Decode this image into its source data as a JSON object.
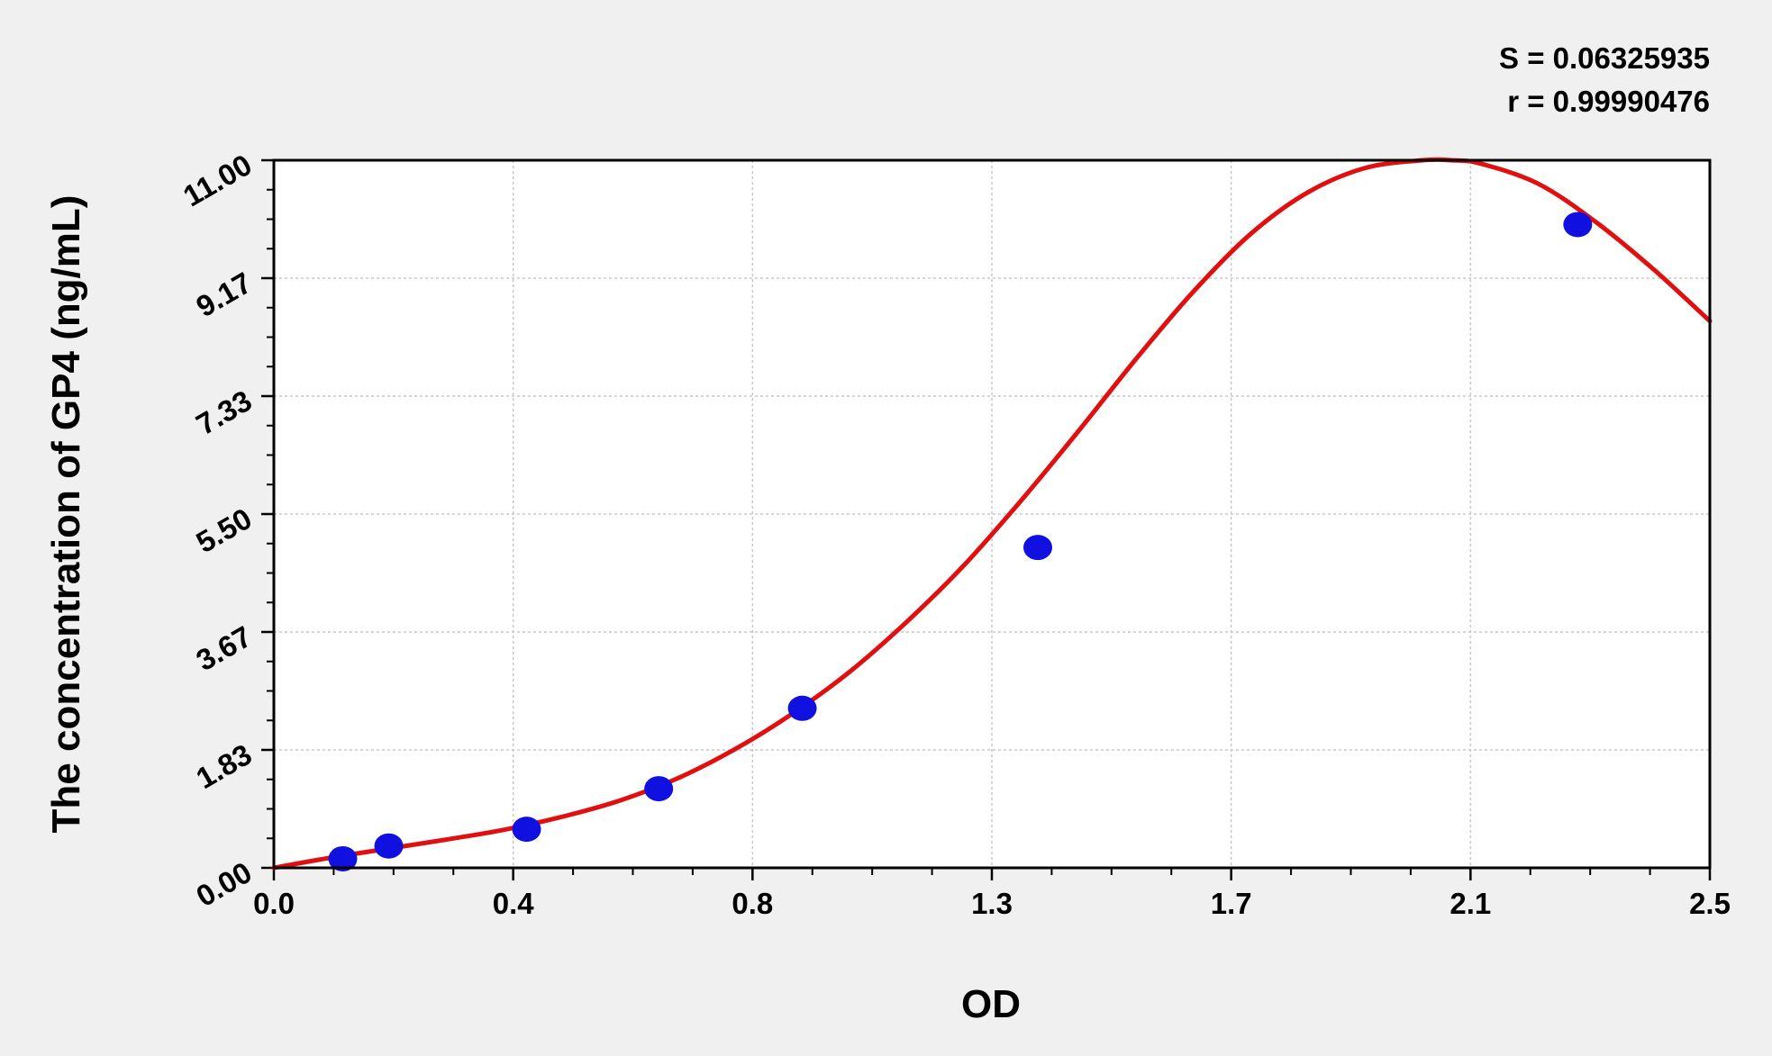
{
  "chart_data": {
    "type": "scatter",
    "xlabel": "OD",
    "ylabel": "The concentration of GP4 (ng/mL)",
    "xlim": [
      0.0,
      2.5
    ],
    "ylim": [
      0.0,
      11.0
    ],
    "x_ticks": [
      "0.0",
      "0.4",
      "0.8",
      "1.3",
      "1.7",
      "2.1",
      "2.5"
    ],
    "y_ticks": [
      "0.00",
      "1.83",
      "3.67",
      "5.50",
      "7.33",
      "9.17",
      "11.00"
    ],
    "grid": true,
    "stats": {
      "s_label": "S = 0.06325935",
      "r_label": "r = 0.99990476"
    },
    "colors": {
      "points": "#1010e0",
      "curve": "#e01010",
      "background": "#f0f0f0",
      "plot_area": "#ffffff",
      "grid": "#c8c8c8"
    },
    "series": [
      {
        "type": "points",
        "x": [
          0.12,
          0.2,
          0.44,
          0.67,
          0.92,
          1.33,
          2.27
        ],
        "y": [
          0.14,
          0.34,
          0.6,
          1.23,
          2.48,
          4.98,
          10.0
        ]
      },
      {
        "type": "fit_curve",
        "x": [
          0.0,
          0.1,
          0.2,
          0.3,
          0.4,
          0.5,
          0.6,
          0.7,
          0.8,
          0.9,
          1.0,
          1.1,
          1.2,
          1.3,
          1.4,
          1.5,
          1.6,
          1.7,
          1.8,
          1.9,
          2.0,
          2.05,
          2.1,
          2.2,
          2.3,
          2.4,
          2.5
        ],
        "y": [
          0.0,
          0.16,
          0.3,
          0.44,
          0.59,
          0.79,
          1.04,
          1.38,
          1.83,
          2.38,
          3.03,
          3.81,
          4.69,
          5.7,
          6.78,
          7.9,
          8.95,
          9.85,
          10.5,
          10.88,
          11.0,
          11.0,
          10.95,
          10.64,
          10.05,
          9.32,
          8.5
        ]
      }
    ]
  }
}
